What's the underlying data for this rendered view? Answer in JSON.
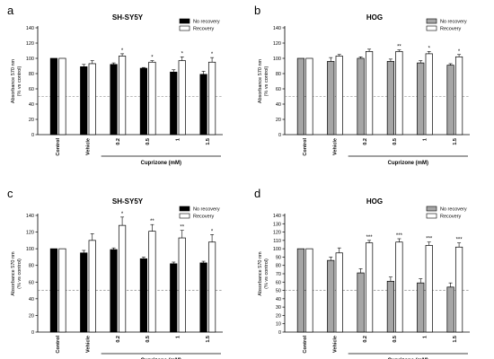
{
  "colors": {
    "no_recovery_sy5y": "#000000",
    "no_recovery_hog": "#a6a6a6",
    "recovery": "#ffffff"
  },
  "chart_data": [
    {
      "panel": "a",
      "type": "bar",
      "title": "SH-SY5Y",
      "ylabel_lines": [
        "Absorbance 570 nm",
        "(% vs control)"
      ],
      "xlabel": "Cuprizone (mM)",
      "categories": [
        "Control",
        "Vehicle",
        "0.2",
        "0.5",
        "1",
        "1.5"
      ],
      "ylim": [
        0,
        140
      ],
      "yticks": [
        "0",
        "20",
        "40",
        "60",
        "80",
        "100",
        "120",
        "140"
      ],
      "reference_line": 50,
      "no_recovery_color": "#000000",
      "series": [
        {
          "name": "No recovery",
          "values": [
            100,
            89,
            92,
            87,
            82,
            79
          ],
          "errors": [
            0,
            3,
            2,
            1,
            3,
            4
          ]
        },
        {
          "name": "Recovery",
          "values": [
            100,
            93,
            103,
            95,
            97,
            95
          ],
          "errors": [
            0,
            4,
            3,
            2,
            5,
            6
          ]
        }
      ],
      "stars": [
        "",
        "",
        "*",
        "*",
        "*",
        "*"
      ]
    },
    {
      "panel": "b",
      "type": "bar",
      "title": "HOG",
      "ylabel_lines": [
        "Absorbance 570 nm",
        "(% vs control)"
      ],
      "xlabel": "Cuprizone (mM)",
      "categories": [
        "Control",
        "Vehicle",
        "0.2",
        "0.5",
        "1",
        "1.5"
      ],
      "ylim": [
        0,
        140
      ],
      "yticks": [
        "0",
        "20",
        "40",
        "60",
        "80",
        "100",
        "120",
        "140"
      ],
      "reference_line": 50,
      "no_recovery_color": "#a6a6a6",
      "series": [
        {
          "name": "No recovery",
          "values": [
            100,
            96,
            100,
            96,
            94,
            91
          ],
          "errors": [
            0,
            5,
            2,
            3,
            3,
            2
          ]
        },
        {
          "name": "Recovery",
          "values": [
            100,
            103,
            109,
            109,
            106,
            102
          ],
          "errors": [
            0,
            2,
            3,
            2,
            3,
            3
          ]
        }
      ],
      "stars": [
        "",
        "",
        "",
        "**",
        "*",
        "*"
      ]
    },
    {
      "panel": "c",
      "type": "bar",
      "title": "SH-SY5Y",
      "ylabel_lines": [
        "Absorbance 570 nm",
        "(% vs control)"
      ],
      "xlabel": "Cuprizone (mM)",
      "categories": [
        "Control",
        "Vehicle",
        "0.2",
        "0.5",
        "1",
        "1.5"
      ],
      "ylim": [
        0,
        140
      ],
      "yticks": [
        "0",
        "20",
        "40",
        "60",
        "80",
        "100",
        "120",
        "140"
      ],
      "reference_line": 50,
      "no_recovery_color": "#000000",
      "series": [
        {
          "name": "No recovery",
          "values": [
            100,
            95,
            99,
            88,
            82,
            83
          ],
          "errors": [
            0,
            3,
            2,
            2,
            2,
            2
          ]
        },
        {
          "name": "Recovery",
          "values": [
            100,
            110,
            128,
            121,
            113,
            108
          ],
          "errors": [
            0,
            8,
            10,
            8,
            9,
            9
          ]
        }
      ],
      "stars": [
        "",
        "",
        "*",
        "**",
        "**",
        "*"
      ]
    },
    {
      "panel": "d",
      "type": "bar",
      "title": "HOG",
      "ylabel_lines": [
        "Absorbance 570 nm",
        "(% vs control)"
      ],
      "xlabel": "Cuprizone (mM)",
      "categories": [
        "Control",
        "Vehicle",
        "0.2",
        "0.5",
        "1",
        "1.5"
      ],
      "ylim": [
        0,
        140
      ],
      "yticks": [
        "0",
        "10",
        "20",
        "30",
        "40",
        "50",
        "60",
        "70",
        "80",
        "90",
        "100",
        "110",
        "120",
        "130",
        "140"
      ],
      "reference_line": 50,
      "no_recovery_color": "#a6a6a6",
      "series": [
        {
          "name": "No recovery",
          "values": [
            100,
            86,
            71,
            61,
            59,
            54
          ],
          "errors": [
            0,
            4,
            5,
            5,
            5,
            5
          ]
        },
        {
          "name": "Recovery",
          "values": [
            100,
            95,
            107,
            108,
            104,
            102
          ],
          "errors": [
            0,
            6,
            3,
            4,
            4,
            5
          ]
        }
      ],
      "stars": [
        "",
        "",
        "***",
        "***",
        "***",
        "***"
      ]
    }
  ]
}
